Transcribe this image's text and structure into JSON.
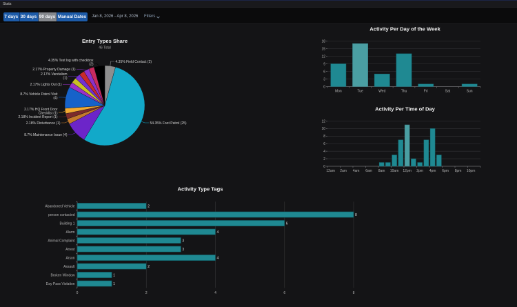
{
  "header": {
    "title": "Stats"
  },
  "toolbar": {
    "ranges": [
      {
        "label": "7 days",
        "active": false
      },
      {
        "label": "30 days",
        "active": false
      },
      {
        "label": "90 days",
        "active": true
      },
      {
        "label": "Manual Dates",
        "active": false
      }
    ],
    "date_range": "Jan 8, 2026 - Apr 8, 2026",
    "filters_label": "Filters",
    "filters_icon": "chevron-down-icon"
  },
  "colors": {
    "range_button": "#1d5ba8",
    "range_button_active": "#85888d",
    "bar": "#1f8992",
    "bar_highlight": "#4a9ea2"
  },
  "chart_data": [
    {
      "type": "pie",
      "title": "Entry Types Share",
      "subtitle": "46 Total",
      "total": 46,
      "slices": [
        {
          "name": "Field Contact",
          "value": 2,
          "percent": "4.35%",
          "color": "#8e8e8e",
          "label_lines": [
            "4.35% Field Contact (2)"
          ]
        },
        {
          "name": "Foot Patrol",
          "value": 25,
          "percent": "54.35%",
          "color": "#12a9c9",
          "label_lines": [
            "54.35% Foot Patrol (25)"
          ]
        },
        {
          "name": "Maintenance Issue",
          "value": 4,
          "percent": "8.7%",
          "color": "#6c25c9",
          "label_lines": [
            "8.7% Maintenance Issue (4)"
          ]
        },
        {
          "name": "Disturbance",
          "value": 1,
          "percent": "2.18%",
          "color": "#c47a2c",
          "label_lines": [
            "2.18% Disturbance (1)"
          ]
        },
        {
          "name": "Incident Report",
          "value": 1,
          "percent": "2.18%",
          "color": "#7c2b2b",
          "label_lines": [
            "2.18% Incident Report (1)"
          ]
        },
        {
          "name": "HQ Front Door Checklist",
          "value": 1,
          "percent": "2.17%",
          "color": "#f2aa32",
          "label_lines": [
            "2.17% HQ Front Door",
            "Checklist (1)"
          ]
        },
        {
          "name": "Vehicle Patrol Visit",
          "value": 4,
          "percent": "8.7%",
          "color": "#1662c9",
          "label_lines": [
            "8.7% Vehicle Patrol Visit",
            "(4)"
          ]
        },
        {
          "name": "Lights Out",
          "value": 1,
          "percent": "2.17%",
          "color": "#9b31c9",
          "label_lines": [
            "2.17% Lights Out (1)"
          ]
        },
        {
          "name": "",
          "value": 1,
          "percent": "",
          "color": "#c9c123",
          "label_lines": []
        },
        {
          "name": "Vandalism",
          "value": 1,
          "percent": "2.17%",
          "color": "#7231d1",
          "label_lines": [
            "2.17% Vandalism",
            "(1)"
          ]
        },
        {
          "name": "",
          "value": 1,
          "percent": "",
          "color": "#c92a2a",
          "label_lines": []
        },
        {
          "name": "Property Damage",
          "value": 1,
          "percent": "2.17%",
          "color": "#8b31c9",
          "label_lines": [
            "2.17% Property Damage (1)"
          ]
        },
        {
          "name": "",
          "value": 1,
          "percent": "",
          "color": "#c92a5e",
          "label_lines": []
        },
        {
          "name": "Test log with checkbox",
          "value": 2,
          "percent": "4.35%",
          "color": "#000000",
          "label_lines": [
            "4.35% Test log with checkbox",
            "(2)"
          ]
        }
      ]
    },
    {
      "type": "bar",
      "title": "Activity Per Day of the Week",
      "categories": [
        "Mon",
        "Tue",
        "Wed",
        "Thu",
        "Fri",
        "Sat",
        "Sun"
      ],
      "values": [
        9,
        17,
        5,
        13,
        1,
        0,
        1
      ],
      "ylim": [
        0,
        18
      ],
      "yticks": [
        0,
        3,
        6,
        9,
        12,
        15,
        18
      ],
      "highlighted": "Tue",
      "grid": true,
      "xlabel": "",
      "ylabel": ""
    },
    {
      "type": "bar",
      "title": "Activity Per Time of Day",
      "x": [
        0,
        1,
        2,
        3,
        4,
        5,
        6,
        7,
        8,
        9,
        10,
        11,
        12,
        13,
        14,
        15,
        16,
        17,
        18,
        19,
        20,
        21,
        22,
        23
      ],
      "tick_labels": [
        "12am",
        "2am",
        "4am",
        "6am",
        "8am",
        "10am",
        "12pm",
        "2pm",
        "4pm",
        "6pm",
        "8pm",
        "10pm"
      ],
      "values": [
        0,
        0,
        0,
        0,
        0,
        0,
        0,
        0,
        1,
        1,
        3,
        7,
        11,
        2,
        1,
        7,
        10,
        3,
        0,
        0,
        0,
        0,
        0,
        0
      ],
      "ylim": [
        0,
        12
      ],
      "yticks": [
        0,
        2,
        4,
        6,
        8,
        10,
        12
      ],
      "highlighted_x": 12,
      "grid": true,
      "xlabel": "",
      "ylabel": ""
    },
    {
      "type": "bar",
      "orientation": "horizontal",
      "title": "Activity Type Tags",
      "categories": [
        "Abandoned Vehicle",
        "person contacted",
        "Building 1",
        "Alarm",
        "Animal Complaint",
        "Arrest",
        "Arson",
        "Assault",
        "Broken Window",
        "Day Pass Violation"
      ],
      "values": [
        2,
        8,
        6,
        4,
        3,
        3,
        4,
        2,
        1,
        1
      ],
      "xlim": [
        0,
        8
      ],
      "xticks": [
        0,
        2,
        4,
        6,
        8
      ],
      "show_values": true,
      "grid": true,
      "xlabel": "",
      "ylabel": ""
    }
  ]
}
